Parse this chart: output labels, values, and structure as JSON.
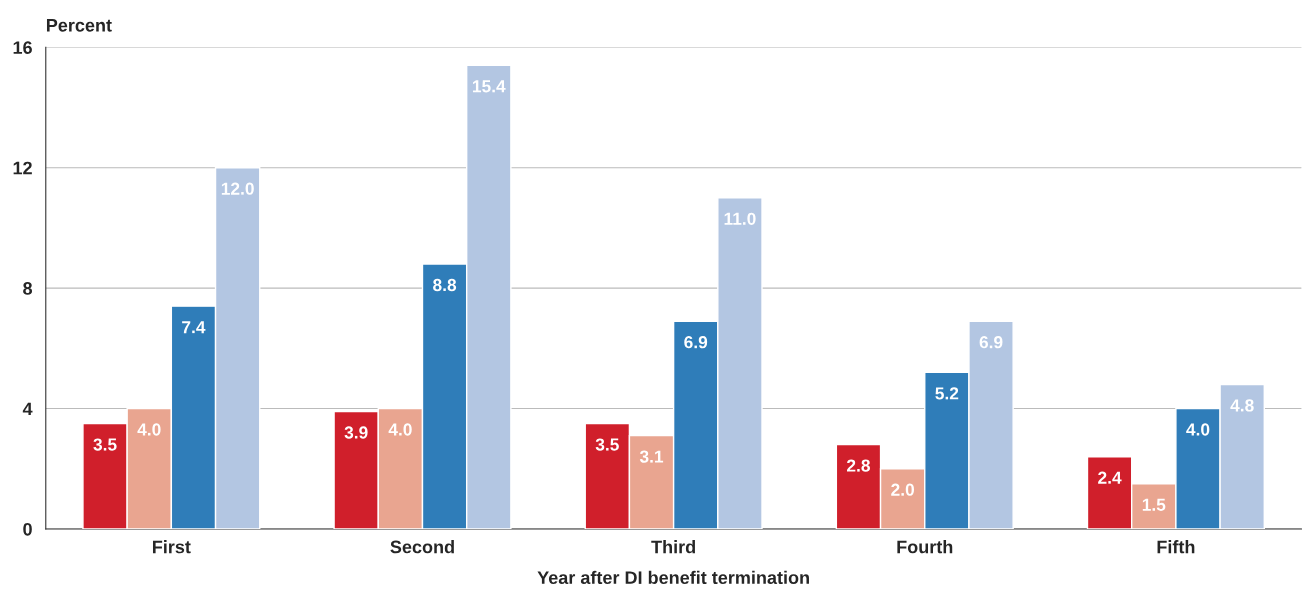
{
  "chart_data": {
    "type": "bar",
    "xlabel": "Year after DI benefit termination",
    "ylabel": "Percent",
    "categories": [
      "First",
      "Second",
      "Third",
      "Fourth",
      "Fifth"
    ],
    "series": [
      {
        "color": "#d01f2b",
        "values": [
          3.5,
          3.9,
          3.5,
          2.8,
          2.4
        ],
        "value_labels": [
          "3.5",
          "3.9",
          "3.5",
          "2.8",
          "2.4"
        ]
      },
      {
        "color": "#e9a590",
        "values": [
          4.0,
          4.0,
          3.1,
          2.0,
          1.5
        ],
        "value_labels": [
          "4.0",
          "4.0",
          "3.1",
          "2.0",
          "1.5"
        ]
      },
      {
        "color": "#2f7db9",
        "values": [
          7.4,
          8.8,
          6.9,
          5.2,
          4.0
        ],
        "value_labels": [
          "7.4",
          "8.8",
          "6.9",
          "5.2",
          "4.0"
        ]
      },
      {
        "color": "#b3c6e2",
        "values": [
          12.0,
          15.4,
          11.0,
          6.9,
          4.8
        ],
        "value_labels": [
          "12.0",
          "15.4",
          "11.0",
          "6.9",
          "4.8"
        ]
      }
    ],
    "ylim": [
      0,
      16
    ],
    "yticks": [
      0,
      4,
      8,
      12,
      16
    ],
    "grid": "y",
    "legend": false
  }
}
